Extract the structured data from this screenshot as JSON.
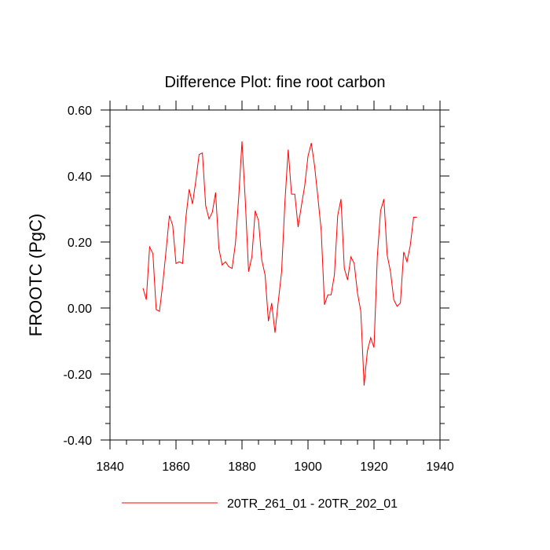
{
  "chart_data": {
    "type": "line",
    "title": "Difference Plot: fine root carbon",
    "xlabel": "",
    "ylabel": "FROOTC  (PgC)",
    "xlim": [
      1840,
      1940
    ],
    "ylim": [
      -0.4,
      0.6
    ],
    "xticks": [
      1840,
      1860,
      1880,
      1900,
      1920,
      1940
    ],
    "xtick_labels": [
      "1840",
      "1860",
      "1880",
      "1900",
      "1920",
      "1940"
    ],
    "yticks": [
      -0.4,
      -0.2,
      0.0,
      0.2,
      0.4,
      0.6
    ],
    "ytick_labels": [
      "-0.40",
      "-0.20",
      "0.00",
      "0.20",
      "0.40",
      "0.60"
    ],
    "legend_position": "bottom-center",
    "series": [
      {
        "name": "20TR_261_01 - 20TR_202_01",
        "color": "#ff0000",
        "x": [
          1850,
          1851,
          1852,
          1853,
          1854,
          1855,
          1856,
          1857,
          1858,
          1859,
          1860,
          1861,
          1862,
          1863,
          1864,
          1865,
          1866,
          1867,
          1868,
          1869,
          1870,
          1871,
          1872,
          1873,
          1874,
          1875,
          1876,
          1877,
          1878,
          1879,
          1880,
          1881,
          1882,
          1883,
          1884,
          1885,
          1886,
          1887,
          1888,
          1889,
          1890,
          1891,
          1892,
          1893,
          1894,
          1895,
          1896,
          1897,
          1898,
          1899,
          1900,
          1901,
          1902,
          1903,
          1904,
          1905,
          1906,
          1907,
          1908,
          1909,
          1910,
          1911,
          1912,
          1913,
          1914,
          1915,
          1916,
          1917,
          1918,
          1919,
          1920,
          1921,
          1922,
          1923,
          1924,
          1925,
          1926,
          1927,
          1928,
          1929,
          1930,
          1931,
          1932,
          1933
        ],
        "values": [
          0.06,
          0.025,
          0.185,
          0.165,
          -0.005,
          -0.01,
          0.075,
          0.175,
          0.28,
          0.25,
          0.135,
          0.14,
          0.135,
          0.275,
          0.36,
          0.315,
          0.385,
          0.465,
          0.47,
          0.31,
          0.27,
          0.29,
          0.35,
          0.18,
          0.13,
          0.14,
          0.125,
          0.12,
          0.195,
          0.335,
          0.505,
          0.325,
          0.11,
          0.155,
          0.295,
          0.265,
          0.145,
          0.1,
          -0.04,
          0.015,
          -0.075,
          0.02,
          0.11,
          0.32,
          0.48,
          0.345,
          0.345,
          0.245,
          0.31,
          0.37,
          0.46,
          0.5,
          0.43,
          0.335,
          0.235,
          0.01,
          0.04,
          0.04,
          0.1,
          0.28,
          0.33,
          0.12,
          0.085,
          0.155,
          0.135,
          0.045,
          -0.01,
          -0.235,
          -0.13,
          -0.09,
          -0.12,
          0.155,
          0.295,
          0.33,
          0.16,
          0.11,
          0.025,
          0.005,
          0.015,
          0.17,
          0.14,
          0.19,
          0.275,
          0.275
        ]
      }
    ]
  }
}
